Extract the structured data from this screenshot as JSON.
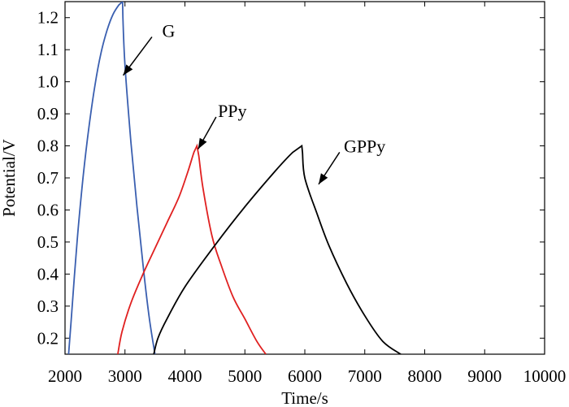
{
  "chart_data": {
    "type": "line",
    "title": "",
    "xlabel": "Time/s",
    "ylabel": "Potential/V",
    "xlim": [
      2000,
      10000
    ],
    "ylim": [
      0.15,
      1.25
    ],
    "x_ticks": [
      2000,
      3000,
      4000,
      5000,
      6000,
      7000,
      8000,
      9000,
      10000
    ],
    "y_ticks": [
      0.2,
      0.3,
      0.4,
      0.5,
      0.6,
      0.7,
      0.8,
      0.9,
      1.0,
      1.1,
      1.2
    ],
    "y_tick_labels": [
      "0.2",
      "0.3",
      "0.4",
      "0.5",
      "0.6",
      "0.7",
      "0.8",
      "0.9",
      "1.0",
      "1.1",
      "1.2"
    ],
    "grid": false,
    "legend": "none",
    "series": [
      {
        "name": "G",
        "color": "#3a5fb0",
        "x": [
          2060,
          2100,
          2200,
          2300,
          2400,
          2500,
          2600,
          2700,
          2800,
          2900,
          2960,
          2965,
          3000,
          3100,
          3200,
          3300,
          3400,
          3500
        ],
        "y": [
          0.15,
          0.25,
          0.5,
          0.7,
          0.86,
          0.99,
          1.09,
          1.16,
          1.21,
          1.24,
          1.25,
          1.2,
          1.05,
          0.81,
          0.61,
          0.43,
          0.27,
          0.15
        ]
      },
      {
        "name": "PPy",
        "color": "#e02020",
        "x": [
          2880,
          2950,
          3100,
          3300,
          3500,
          3700,
          3900,
          4050,
          4150,
          4200,
          4230,
          4300,
          4450,
          4600,
          4800,
          5000,
          5200,
          5350
        ],
        "y": [
          0.15,
          0.22,
          0.31,
          0.4,
          0.48,
          0.56,
          0.64,
          0.72,
          0.78,
          0.8,
          0.77,
          0.67,
          0.52,
          0.43,
          0.33,
          0.26,
          0.19,
          0.15
        ]
      },
      {
        "name": "GPPy",
        "color": "#000000",
        "x": [
          3480,
          3550,
          3700,
          4000,
          4500,
          5000,
          5500,
          5800,
          5950,
          5960,
          6000,
          6200,
          6400,
          6700,
          7000,
          7300,
          7600
        ],
        "y": [
          0.15,
          0.2,
          0.26,
          0.36,
          0.49,
          0.61,
          0.72,
          0.78,
          0.8,
          0.78,
          0.7,
          0.59,
          0.49,
          0.37,
          0.27,
          0.19,
          0.15
        ]
      }
    ],
    "annotations": [
      {
        "text": "G",
        "series": "G",
        "arrow_tip": [
          2970,
          1.02
        ],
        "arrow_tail": [
          3450,
          1.14
        ],
        "label_at": [
          3620,
          1.16
        ]
      },
      {
        "text": "PPy",
        "series": "PPy",
        "arrow_tip": [
          4220,
          0.79
        ],
        "arrow_tail": [
          4520,
          0.89
        ],
        "label_at": [
          4550,
          0.91
        ]
      },
      {
        "text": "GPPy",
        "series": "GPPy",
        "arrow_tip": [
          6230,
          0.68
        ],
        "arrow_tail": [
          6580,
          0.78
        ],
        "label_at": [
          6650,
          0.8
        ]
      }
    ]
  }
}
